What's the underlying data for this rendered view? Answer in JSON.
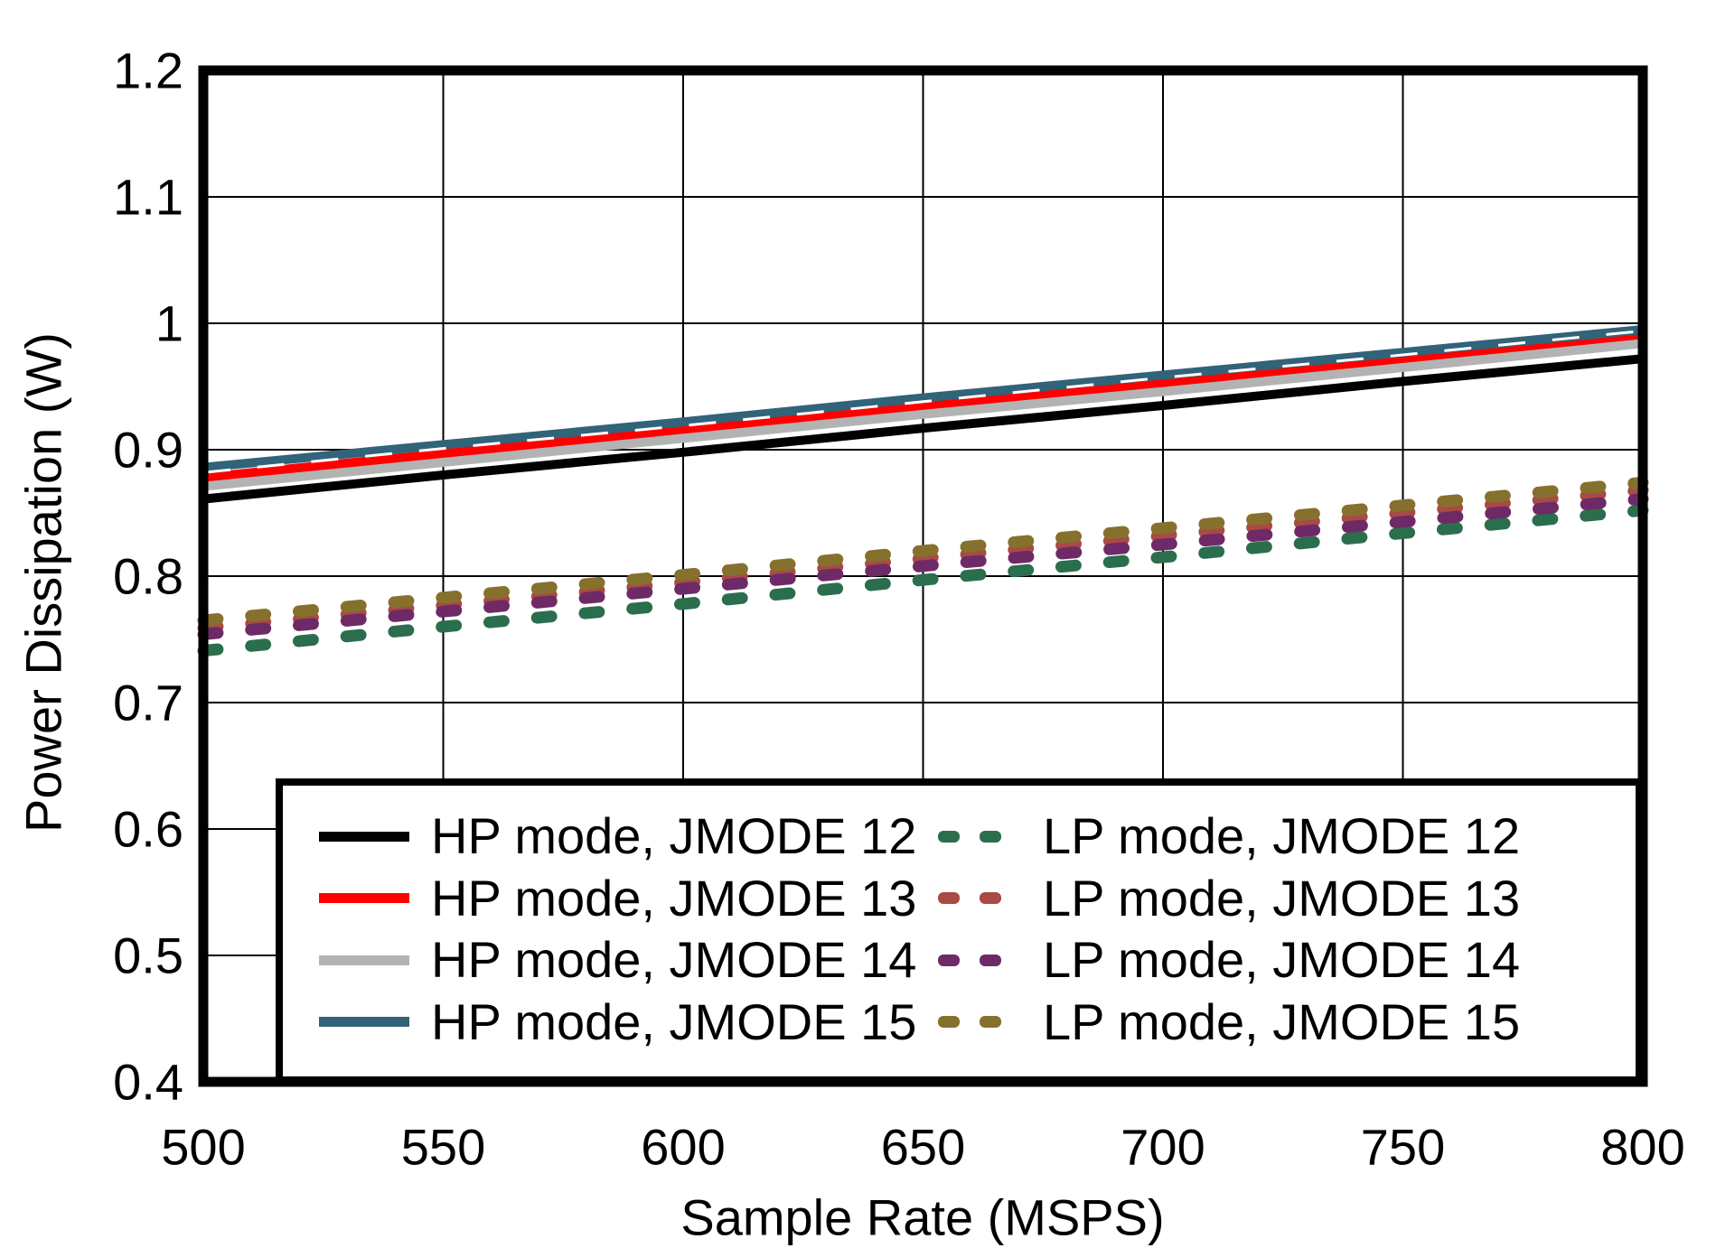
{
  "chart_data": {
    "type": "line",
    "title": "",
    "xlabel": "Sample Rate (MSPS)",
    "ylabel": "Power Dissipation (W)",
    "xlim": [
      500,
      800
    ],
    "ylim": [
      0.4,
      1.2
    ],
    "grid": true,
    "legend_position": "inside bottom, full width, 2 columns (HP solid left, LP dashed right)",
    "xticks": {
      "values": [
        500,
        550,
        600,
        650,
        700,
        750,
        800
      ],
      "labels": [
        "500",
        "550",
        "600",
        "650",
        "700",
        "750",
        "800"
      ]
    },
    "yticks": {
      "values": [
        0.4,
        0.5,
        0.6,
        0.7,
        0.8,
        0.9,
        1.0,
        1.1,
        1.2
      ],
      "labels": [
        "0.4",
        "0.5",
        "0.6",
        "0.7",
        "0.8",
        "0.9",
        "1",
        "1.1",
        "1.2"
      ]
    },
    "x": [
      500,
      550,
      600,
      650,
      700,
      750,
      800
    ],
    "series": [
      {
        "name": "HP mode, JMODE 12",
        "style": "solid",
        "color": "#000000",
        "values": [
          0.861,
          0.88,
          0.898,
          0.917,
          0.935,
          0.954,
          0.972
        ]
      },
      {
        "name": "HP mode, JMODE 13",
        "style": "solid",
        "color": "#ff0000",
        "values": [
          0.878,
          0.897,
          0.915,
          0.934,
          0.953,
          0.971,
          0.99
        ]
      },
      {
        "name": "HP mode, JMODE 14",
        "style": "solid",
        "color": "#b3b3b3",
        "values": [
          0.871,
          0.89,
          0.909,
          0.928,
          0.946,
          0.965,
          0.984
        ]
      },
      {
        "name": "HP mode, JMODE 15",
        "style": "solid",
        "color": "#316379",
        "values": [
          0.886,
          0.904,
          0.922,
          0.941,
          0.959,
          0.977,
          0.995
        ]
      },
      {
        "name": "LP mode, JMODE 12",
        "style": "dashed",
        "color": "#2b6e4e",
        "values": [
          0.741,
          0.76,
          0.778,
          0.797,
          0.815,
          0.834,
          0.852
        ]
      },
      {
        "name": "LP mode, JMODE 13",
        "style": "dashed",
        "color": "#a94a44",
        "values": [
          0.759,
          0.777,
          0.795,
          0.814,
          0.832,
          0.85,
          0.868
        ]
      },
      {
        "name": "LP mode, JMODE 14",
        "style": "dashed",
        "color": "#6e2a66",
        "values": [
          0.754,
          0.772,
          0.79,
          0.808,
          0.825,
          0.843,
          0.861
        ]
      },
      {
        "name": "LP mode, JMODE 15",
        "style": "dashed",
        "color": "#86702e",
        "values": [
          0.765,
          0.783,
          0.801,
          0.82,
          0.838,
          0.856,
          0.874
        ]
      }
    ]
  }
}
